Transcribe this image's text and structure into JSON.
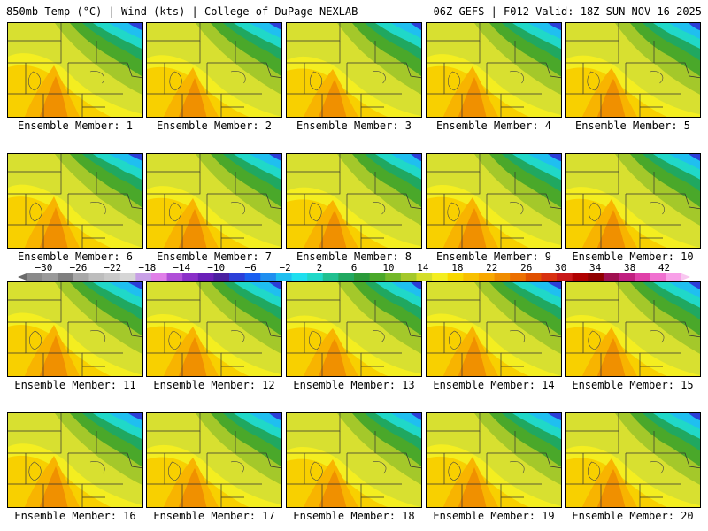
{
  "header": {
    "left": "850mb Temp (°C) | Wind (kts) | College of DuPage NEXLAB",
    "right": "06Z GEFS | F012 Valid: 18Z SUN NOV 16 2025"
  },
  "panels": [
    {
      "label": "Ensemble Member: 1"
    },
    {
      "label": "Ensemble Member: 2"
    },
    {
      "label": "Ensemble Member: 3"
    },
    {
      "label": "Ensemble Member: 4"
    },
    {
      "label": "Ensemble Member: 5"
    },
    {
      "label": "Ensemble Member: 6"
    },
    {
      "label": "Ensemble Member: 7"
    },
    {
      "label": "Ensemble Member: 8"
    },
    {
      "label": "Ensemble Member: 9"
    },
    {
      "label": "Ensemble Member: 10"
    },
    {
      "label": "Ensemble Member: 11"
    },
    {
      "label": "Ensemble Member: 12"
    },
    {
      "label": "Ensemble Member: 13"
    },
    {
      "label": "Ensemble Member: 14"
    },
    {
      "label": "Ensemble Member: 15"
    },
    {
      "label": "Ensemble Member: 16"
    },
    {
      "label": "Ensemble Member: 17"
    },
    {
      "label": "Ensemble Member: 18"
    },
    {
      "label": "Ensemble Member: 19"
    },
    {
      "label": "Ensemble Member: 20"
    }
  ],
  "colorbar": {
    "ticks": [
      "−30",
      "−26",
      "−22",
      "−18",
      "−14",
      "−10",
      "−6",
      "−2",
      "2",
      "6",
      "10",
      "14",
      "18",
      "22",
      "26",
      "30",
      "34",
      "38",
      "42"
    ],
    "min": -32,
    "max": 44,
    "colors": [
      "#8a8a8a",
      "#9a9a9a",
      "#7f7f7f",
      "#a8a8a8",
      "#bdbdbd",
      "#c9c9c9",
      "#d6d6d6",
      "#c8a0e6",
      "#e07fe8",
      "#b04fd8",
      "#8a2fc8",
      "#6a1fb8",
      "#4b1fa0",
      "#2c3fd8",
      "#1a5ff0",
      "#1f8ff0",
      "#1fbff0",
      "#1fdfef",
      "#20d8c8",
      "#20c090",
      "#20a860",
      "#2a9a3a",
      "#4aa82a",
      "#74b82a",
      "#a4c82a",
      "#d4de2a",
      "#f4ee20",
      "#f8d800",
      "#f8c000",
      "#f8a800",
      "#f08c00",
      "#ec7000",
      "#e05000",
      "#d83010",
      "#c81818",
      "#b00000",
      "#900000",
      "#a01050",
      "#c02080",
      "#e040a8",
      "#f070d0",
      "#f8a0e8"
    ]
  }
}
